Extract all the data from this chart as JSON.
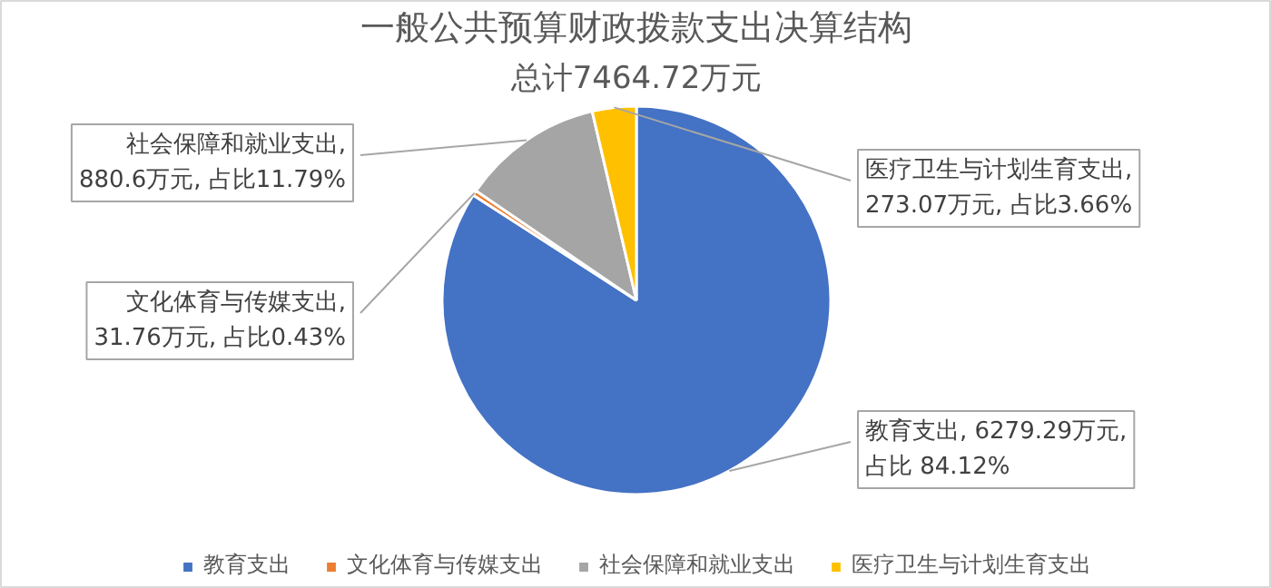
{
  "chart_data": {
    "type": "pie",
    "title": "一般公共预算财政拨款支出决算结构",
    "subtitle": "总计7464.72万元",
    "categories": [
      "教育支出",
      "文化体育与传媒支出",
      "社会保障和就业支出",
      "医疗卫生与计划生育支出"
    ],
    "values": [
      6279.29,
      31.76,
      880.6,
      273.07
    ],
    "colors": [
      "#4472c4",
      "#ed7d31",
      "#a5a5a5",
      "#ffc000"
    ],
    "value_labels": [
      "教育支出, 6279.29万元,\n占比 84.12%",
      "文化体育与传媒支出,\n31.76万元, 占比0.43%",
      "社会保障和就业支出,\n880.6万元, 占比11.79%",
      "医疗卫生与计划生育支出,\n273.07万元, 占比3.66%"
    ],
    "legend": "bottom"
  }
}
